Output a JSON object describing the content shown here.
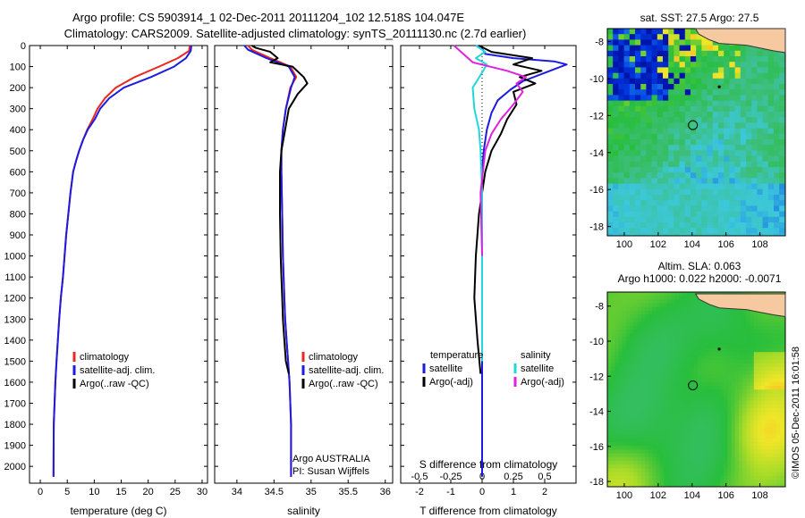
{
  "header": {
    "line1": "Argo profile: CS 5903914_1 02-Dec-2011 20111204_102 12.518S 104.047E",
    "line2": "Climatology: CARS2009. Satellite-adjusted climatology: synTS_20111130.nc (2.7d earlier)"
  },
  "colors": {
    "climatology": "#e8281e",
    "satellite": "#1c1ce0",
    "argo": "#000000",
    "sal_satellite": "#22d6dc",
    "sal_argo": "#e020e0"
  },
  "chart_data": [
    {
      "type": "line",
      "panel": "temperature",
      "xlabel": "temperature (deg C)",
      "xlim": [
        -2,
        31
      ],
      "ylim": [
        2080,
        0
      ],
      "xticks": [
        0,
        5,
        10,
        15,
        20,
        25,
        30
      ],
      "yticks": [
        0,
        100,
        200,
        300,
        400,
        500,
        600,
        700,
        800,
        900,
        1000,
        1100,
        1200,
        1300,
        1400,
        1500,
        1600,
        1700,
        1800,
        1900,
        2000
      ],
      "legend": [
        "climatology",
        "satellite-adj. clim.",
        "Argo(..raw -QC)"
      ],
      "series": [
        {
          "name": "climatology",
          "color": "climatology",
          "x": [
            27.7,
            27.6,
            25.5,
            22.0,
            17.5,
            14.0,
            12.0,
            10.6,
            9.7,
            8.7,
            7.9,
            7.2,
            6.6,
            6.1,
            5.6,
            5.2,
            4.8,
            4.5,
            4.2,
            3.8,
            3.5,
            3.25,
            3.0,
            2.8,
            2.65,
            2.5,
            2.45
          ],
          "y": [
            0,
            25,
            60,
            100,
            150,
            200,
            250,
            300,
            350,
            400,
            450,
            500,
            550,
            600,
            700,
            800,
            900,
            1000,
            1100,
            1200,
            1300,
            1400,
            1500,
            1600,
            1700,
            1800,
            2050
          ]
        },
        {
          "name": "satellite-adj. clim.",
          "color": "satellite",
          "x": [
            28.0,
            27.9,
            27.0,
            24.8,
            20.5,
            15.5,
            12.8,
            11.1,
            10.1,
            8.8,
            7.9,
            7.2,
            6.6,
            6.1,
            5.6,
            5.2,
            4.8,
            4.5,
            4.2,
            3.8,
            3.5,
            3.25,
            3.0,
            2.8,
            2.65,
            2.5,
            2.45
          ],
          "y": [
            0,
            25,
            60,
            100,
            150,
            200,
            250,
            300,
            350,
            400,
            450,
            500,
            550,
            600,
            700,
            800,
            900,
            1000,
            1100,
            1200,
            1300,
            1400,
            1500,
            1600,
            1700,
            1800,
            2050
          ]
        }
      ]
    },
    {
      "type": "line",
      "panel": "salinity",
      "xlabel": "salinity",
      "xlim": [
        33.7,
        36.1
      ],
      "ylim": [
        2080,
        0
      ],
      "xticks": [
        34,
        34.5,
        35,
        35.5,
        36
      ],
      "legend": [
        "climatology",
        "satellite-adj. clim.",
        "Argo(..raw -QC)"
      ],
      "annotations": [
        "Argo AUSTRALIA",
        "PI: Susan Wijffels"
      ],
      "series": [
        {
          "name": "climatology",
          "color": "climatology",
          "x": [
            34.15,
            34.2,
            34.45,
            34.72,
            34.8,
            34.72,
            34.66,
            34.62,
            34.6,
            34.6,
            34.61,
            34.62,
            34.63,
            34.64,
            34.65,
            34.67,
            34.69,
            34.71,
            34.73,
            34.73
          ],
          "y": [
            0,
            20,
            60,
            100,
            150,
            200,
            300,
            400,
            500,
            600,
            800,
            1000,
            1100,
            1200,
            1300,
            1400,
            1500,
            1600,
            1800,
            2050
          ]
        },
        {
          "name": "satellite-adj. clim.",
          "color": "satellite",
          "x": [
            34.1,
            34.15,
            34.4,
            34.7,
            34.78,
            34.73,
            34.66,
            34.62,
            34.6,
            34.6,
            34.61,
            34.62,
            34.63,
            34.64,
            34.65,
            34.67,
            34.69,
            34.71,
            34.73,
            34.73
          ],
          "y": [
            0,
            20,
            60,
            100,
            150,
            200,
            300,
            400,
            500,
            600,
            800,
            1000,
            1100,
            1200,
            1300,
            1400,
            1500,
            1600,
            1800,
            2050
          ]
        },
        {
          "name": "Argo(..raw -QC)",
          "color": "argo",
          "x": [
            34.2,
            34.25,
            34.45,
            34.55,
            34.45,
            34.75,
            34.9,
            34.95,
            34.82,
            34.7,
            34.65,
            34.6,
            34.58,
            34.58,
            34.59,
            34.6,
            34.61,
            34.62,
            34.64,
            34.66,
            34.7
          ],
          "y": [
            0,
            10,
            30,
            60,
            80,
            100,
            150,
            180,
            230,
            300,
            400,
            500,
            600,
            800,
            1000,
            1100,
            1200,
            1300,
            1400,
            1500,
            1560
          ]
        }
      ]
    },
    {
      "type": "line",
      "panel": "difference",
      "xlabel": "T difference from climatology",
      "xlabel2": "S difference from climatology",
      "xlim": [
        -2.6,
        3.0
      ],
      "ylim": [
        2080,
        0
      ],
      "xticks": [
        -2,
        -1,
        0,
        1,
        2
      ],
      "xticks2_labels": [
        "-0.5",
        "-0.25",
        "0",
        "0.25",
        "0.5"
      ],
      "xticks2_pos": [
        -2,
        -1,
        0,
        1,
        2
      ],
      "legend_left_title": "temperature",
      "legend_right_title": "salinity",
      "legend_left": [
        "satellite",
        "Argo(-adj)"
      ],
      "legend_right": [
        "satellite",
        "Argo(-adj)"
      ],
      "series": [
        {
          "name": "satellite",
          "group": "temperature",
          "color": "satellite",
          "x": [
            -0.05,
            0.1,
            1.0,
            2.3,
            2.7,
            2.0,
            1.3,
            0.9,
            0.5,
            0.3,
            0.15,
            0.05,
            0.0,
            0.0,
            0.0,
            0.0,
            0.0,
            0.0
          ],
          "y": [
            0,
            40,
            60,
            75,
            90,
            130,
            170,
            210,
            260,
            320,
            400,
            500,
            600,
            800,
            1000,
            1300,
            1600,
            2050
          ]
        },
        {
          "name": "Argo(-adj)",
          "group": "temperature",
          "color": "argo",
          "x": [
            -0.1,
            0.3,
            1.6,
            1.0,
            1.9,
            1.2,
            1.7,
            1.0,
            1.1,
            0.8,
            0.6,
            0.3,
            0.1,
            -0.1,
            -0.2,
            -0.25,
            -0.15,
            -0.05
          ],
          "y": [
            0,
            30,
            60,
            90,
            120,
            150,
            180,
            220,
            280,
            350,
            420,
            500,
            600,
            800,
            1000,
            1200,
            1400,
            1560
          ]
        },
        {
          "name": "satellite",
          "group": "salinity",
          "color": "sal_satellite",
          "x": [
            -0.2,
            0.1,
            -0.2,
            0.15,
            -0.05,
            -0.3,
            -0.25,
            -0.1,
            -0.05,
            0.0,
            0.0,
            0.0
          ],
          "y": [
            0,
            30,
            60,
            90,
            140,
            200,
            300,
            400,
            500,
            700,
            1000,
            1500
          ]
        },
        {
          "name": "Argo(-adj)",
          "group": "salinity",
          "color": "sal_argo",
          "x": [
            -0.9,
            -0.6,
            -0.3,
            0.8,
            1.4,
            1.1,
            1.3,
            1.0,
            0.6,
            0.3,
            0.1,
            -0.05,
            0.0
          ],
          "y": [
            0,
            40,
            80,
            120,
            150,
            180,
            220,
            280,
            350,
            420,
            500,
            700,
            1000
          ]
        }
      ]
    },
    {
      "type": "heatmap",
      "panel": "sst-map",
      "title": "sat. SST: 27.5 Argo: 27.5",
      "xlim": [
        99,
        109.5
      ],
      "ylim": [
        -18.5,
        -7.3
      ],
      "xticks": [
        100,
        102,
        104,
        106,
        108
      ],
      "yticks": [
        -8,
        -10,
        -12,
        -14,
        -16,
        -18
      ],
      "argo_position": [
        104.047,
        -12.518
      ]
    },
    {
      "type": "heatmap",
      "panel": "sla-map",
      "title_line1": "Altim. SLA: 0.063",
      "title_line2": "Argo h1000: 0.022 h2000: -0.0071",
      "xlim": [
        99,
        109.5
      ],
      "ylim": [
        -18.3,
        -7.2
      ],
      "xticks": [
        100,
        102,
        104,
        106,
        108
      ],
      "yticks": [
        -8,
        -10,
        -12,
        -14,
        -16,
        -18
      ],
      "argo_position": [
        104.047,
        -12.518
      ]
    }
  ],
  "footer": {
    "credit": "©IMOS 05-Dec-2011 16:01:58"
  }
}
